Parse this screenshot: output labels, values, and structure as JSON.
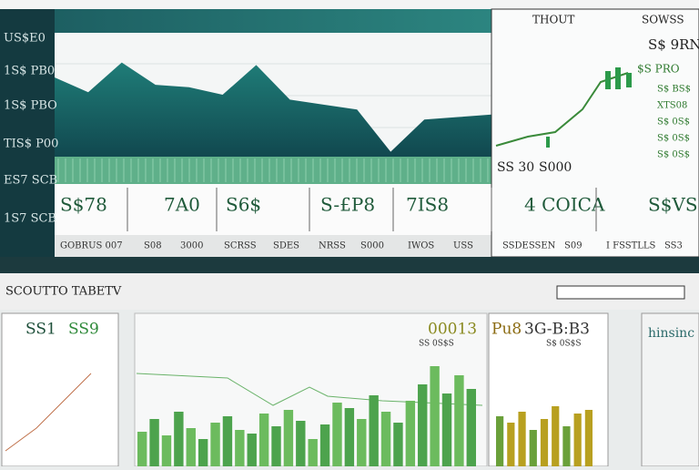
{
  "top_left_axis": [
    "US$E0",
    "1S$ PB0",
    "1S$ PBO",
    "TIS$ P00",
    "ES7 SCB",
    "1S7 SCB"
  ],
  "right_panel": {
    "tabs": [
      "THOUT",
      "SOWSS"
    ],
    "price": "S$ 9RN",
    "tag": "$S PRO",
    "footer": [
      "SS 30",
      "S000"
    ],
    "list": [
      "S$ BS$",
      "XTS08",
      "S$ 0S$",
      "S$ 0S$",
      "S$ 0S$"
    ]
  },
  "area_chart": {
    "values": [
      64,
      52,
      76,
      58,
      56,
      50,
      74,
      46,
      42,
      38,
      4,
      30,
      32,
      34
    ]
  },
  "kpis": [
    "S$78",
    "7A0",
    "S6$",
    "S-£P8",
    "7IS8",
    "4 COICA",
    "S$VSO"
  ],
  "sub_row": [
    "GOBRUS 007",
    "S08",
    "3000",
    "SCRSS",
    "SDES",
    "NRSS",
    "S000",
    "IWOS",
    "USS",
    "SSDESSEN",
    "S09",
    "I FSSTLLS",
    "SS3"
  ],
  "section_title": "SCOUTTO TABETV",
  "bottom": {
    "left_title": "SS1",
    "left_title2": "SS9",
    "mid_title": "00013",
    "mid_sub": "SS 0S$S",
    "right_title": "Pu8",
    "right_title2": "3G-B:B3",
    "right_sub": "S$ 0S$S",
    "far_title": "hinsinc",
    "bars": [
      38,
      52,
      34,
      60,
      42,
      30,
      48,
      55,
      40,
      36,
      58,
      44,
      62,
      50,
      30,
      46,
      70,
      64,
      52,
      78,
      60,
      48,
      72,
      90,
      110,
      80,
      100,
      85
    ],
    "gold_bars": [
      55,
      48,
      60,
      40,
      52,
      66,
      44,
      58,
      62
    ]
  }
}
